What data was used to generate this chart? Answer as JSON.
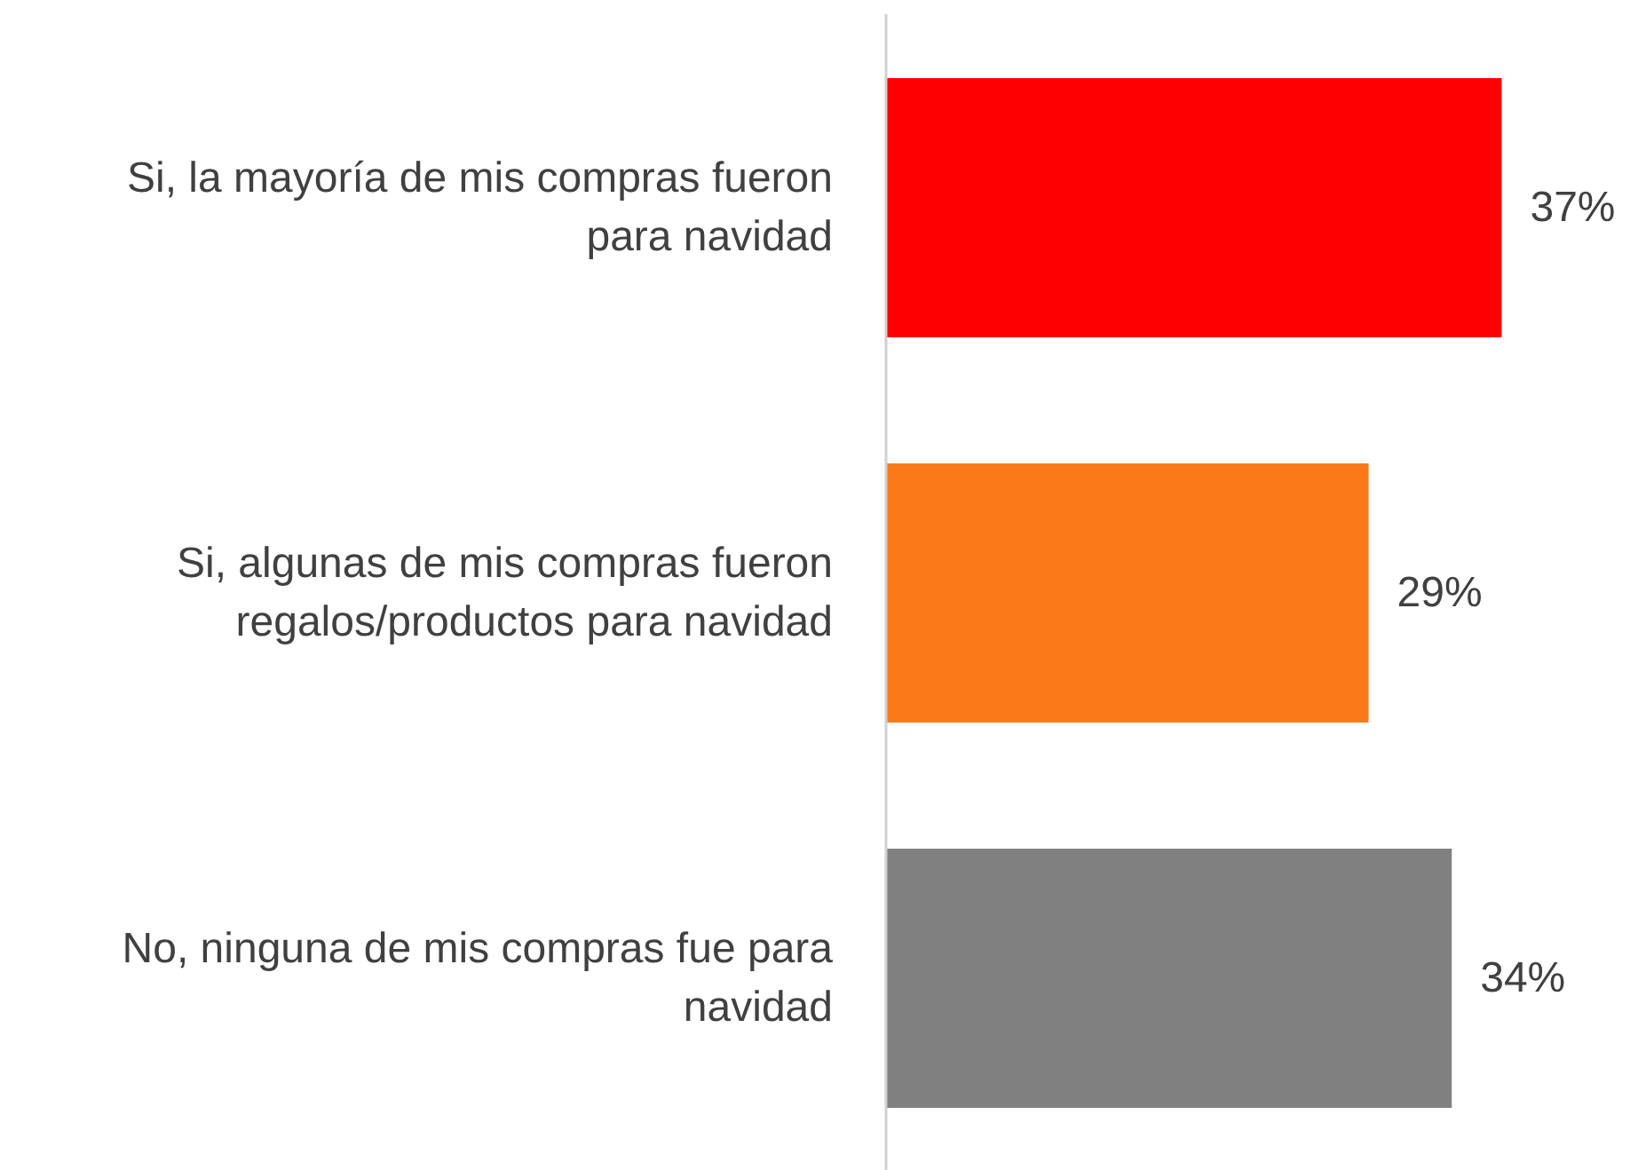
{
  "chart_data": {
    "type": "bar",
    "orientation": "horizontal",
    "categories": [
      "Si, la mayoría de mis compras fueron para navidad",
      "Si, algunas de mis compras fueron regalos/productos para navidad",
      "No, ninguna de mis compras fue para navidad"
    ],
    "values": [
      37,
      29,
      34
    ],
    "colors": [
      "#ff0000",
      "#fa7a1a",
      "#808080"
    ],
    "tick_labels": "y",
    "data_labels": true,
    "value_labels": [
      "37%",
      "29%",
      "34%"
    ]
  }
}
